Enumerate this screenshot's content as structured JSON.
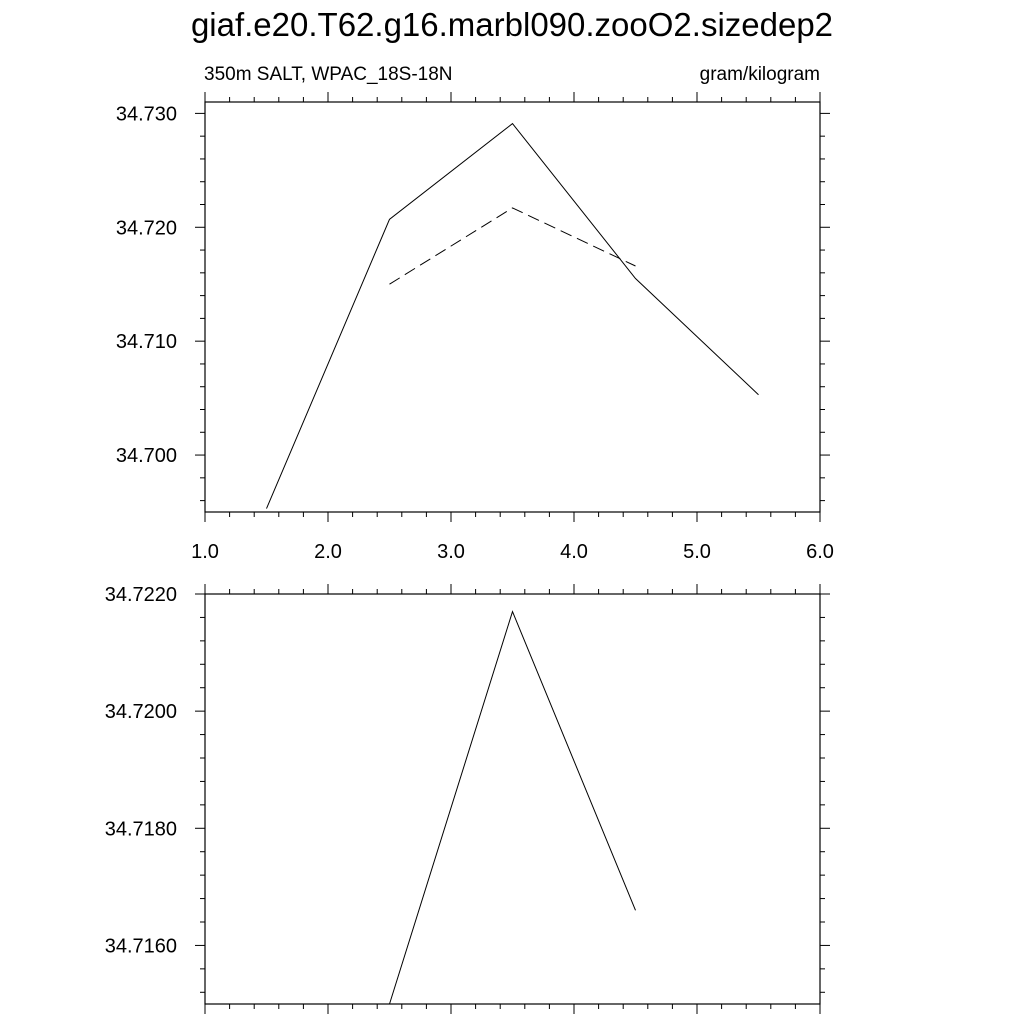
{
  "title": "giaf.e20.T62.g16.marbl090.zooO2.sizedep2",
  "chart_data": [
    {
      "type": "line",
      "left_label": "350m SALT, WPAC_18S-18N",
      "right_label": "gram/kilogram",
      "xlim": [
        1.0,
        6.0
      ],
      "ylim": [
        34.695,
        34.731
      ],
      "x_ticks": [
        1.0,
        2.0,
        3.0,
        4.0,
        5.0,
        6.0
      ],
      "x_tick_labels": [
        "1.0",
        "2.0",
        "3.0",
        "4.0",
        "5.0",
        "6.0"
      ],
      "y_ticks": [
        34.7,
        34.71,
        34.72,
        34.73
      ],
      "y_tick_labels": [
        "34.700",
        "34.710",
        "34.720",
        "34.730"
      ],
      "grid": false,
      "series": [
        {
          "style": "solid",
          "color": "#000000",
          "x": [
            1.5,
            2.5,
            3.5,
            4.5,
            5.5
          ],
          "y": [
            34.6953,
            34.7207,
            34.7291,
            34.7155,
            34.7053
          ]
        },
        {
          "style": "dashed",
          "color": "#000000",
          "x": [
            2.5,
            3.5,
            4.5
          ],
          "y": [
            34.715,
            34.7217,
            34.7166
          ]
        }
      ]
    },
    {
      "type": "line",
      "xlim": [
        1.0,
        6.0
      ],
      "ylim": [
        34.715,
        34.722
      ],
      "x_ticks": [
        1.0,
        2.0,
        3.0,
        4.0,
        5.0,
        6.0
      ],
      "y_ticks": [
        34.716,
        34.718,
        34.72,
        34.722
      ],
      "y_tick_labels": [
        "34.7160",
        "34.7180",
        "34.7200",
        "34.7220"
      ],
      "grid": false,
      "series": [
        {
          "style": "solid",
          "color": "#000000",
          "x": [
            2.5,
            3.5,
            4.5
          ],
          "y": [
            34.715,
            34.7217,
            34.7166
          ]
        }
      ]
    }
  ]
}
